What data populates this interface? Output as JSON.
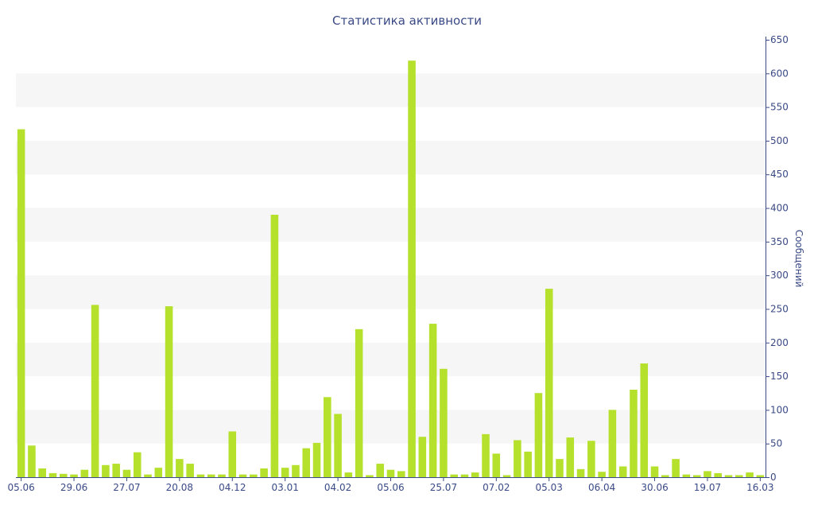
{
  "chart_data": {
    "type": "bar",
    "title": "Статистика активности",
    "xlabel": "",
    "ylabel": "Сообщений",
    "ylim": [
      0,
      650
    ],
    "y_axis_side": "right",
    "y_ticks": [
      0,
      50,
      100,
      150,
      200,
      250,
      300,
      350,
      400,
      450,
      500,
      550,
      600,
      650
    ],
    "grid": "alternating horizontal bands",
    "x_tick_labels": [
      "05.06",
      "29.06",
      "27.07",
      "20.08",
      "04.12",
      "03.01",
      "04.02",
      "05.06",
      "25.07",
      "07.02",
      "05.03",
      "06.04",
      "30.06",
      "19.07",
      "16.03"
    ],
    "x_tick_positions": [
      0,
      5,
      10,
      15,
      20,
      25,
      30,
      35,
      40,
      45,
      50,
      55,
      60,
      65,
      70
    ],
    "values": [
      517,
      47,
      13,
      6,
      5,
      4,
      11,
      256,
      18,
      20,
      11,
      37,
      4,
      14,
      254,
      27,
      20,
      4,
      4,
      4,
      68,
      4,
      4,
      13,
      390,
      14,
      18,
      43,
      51,
      119,
      94,
      7,
      220,
      3,
      20,
      11,
      9,
      619,
      60,
      228,
      161,
      4,
      4,
      7,
      64,
      35,
      3,
      55,
      38,
      125,
      280,
      27,
      59,
      12,
      54,
      8,
      100,
      16,
      130,
      169,
      16,
      3,
      27,
      4,
      3,
      9,
      6,
      3,
      3,
      7,
      3
    ],
    "bar_color": "#b5e02b",
    "band_color": "#f6f6f6",
    "text_color": "#3a4a86"
  }
}
